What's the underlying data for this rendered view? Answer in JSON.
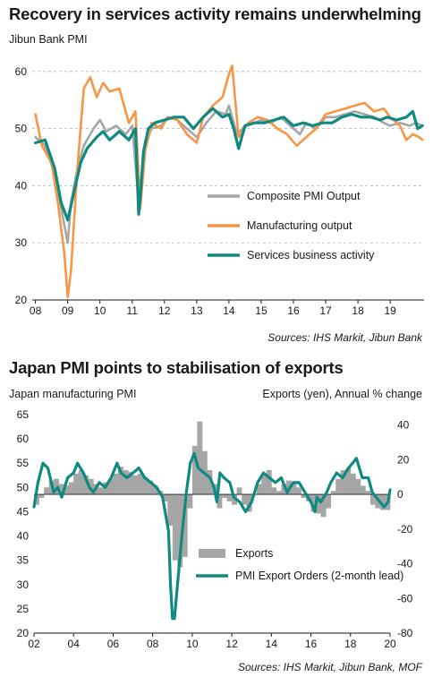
{
  "chart1": {
    "title": "Recovery in services activity remains underwhelming",
    "ylabel": "Jibun Bank PMI",
    "source": "Sources: IHS Markit, Jibun Bank",
    "colors": {
      "composite": "#a6a6a6",
      "manufacturing": "#f79646",
      "services": "#0f8a80"
    },
    "chart_data": {
      "type": "line",
      "ylim": [
        20,
        62
      ],
      "yticks": [
        "20",
        "30",
        "40",
        "50",
        "60"
      ],
      "xlabels": [
        "08",
        "09",
        "10",
        "11",
        "12",
        "13",
        "14",
        "15",
        "16",
        "17",
        "18",
        "19"
      ],
      "legend": "inside, lower-right",
      "series": [
        {
          "name": "Composite PMI Output",
          "x": [
            2008.0,
            2008.3,
            2008.6,
            2008.8,
            2009.0,
            2009.1,
            2009.3,
            2009.5,
            2009.8,
            2010.0,
            2010.2,
            2010.5,
            2010.8,
            2011.0,
            2011.2,
            2011.25,
            2011.4,
            2011.6,
            2011.9,
            2012.1,
            2012.4,
            2012.7,
            2013.0,
            2013.3,
            2013.6,
            2013.9,
            2014.0,
            2014.25,
            2014.5,
            2014.8,
            2015.0,
            2015.3,
            2015.6,
            2015.9,
            2016.2,
            2016.4,
            2016.7,
            2017.0,
            2017.3,
            2017.6,
            2017.9,
            2018.2,
            2018.5,
            2018.8,
            2019.0,
            2019.3,
            2019.6,
            2019.8,
            2020.0
          ],
          "values": [
            48.5,
            47,
            42,
            36,
            30,
            37,
            43,
            47,
            50,
            51.5,
            49.5,
            50.5,
            49,
            50.5,
            37,
            40,
            47,
            50,
            50.5,
            52,
            51.5,
            50,
            48.5,
            51,
            53,
            52.5,
            54,
            49,
            50.5,
            51,
            51.5,
            51,
            52,
            50.5,
            49,
            51,
            50,
            52,
            52,
            52.5,
            53,
            52.5,
            52,
            51,
            50.5,
            51,
            50.5,
            51,
            50.5
          ]
        },
        {
          "name": "Manufacturing output",
          "x": [
            2008.0,
            2008.2,
            2008.5,
            2008.7,
            2008.9,
            2009.0,
            2009.1,
            2009.3,
            2009.5,
            2009.7,
            2009.9,
            2010.1,
            2010.3,
            2010.6,
            2010.9,
            2011.1,
            2011.25,
            2011.4,
            2011.6,
            2011.9,
            2012.1,
            2012.4,
            2012.7,
            2013.0,
            2013.2,
            2013.5,
            2013.8,
            2014.0,
            2014.1,
            2014.3,
            2014.6,
            2014.9,
            2015.2,
            2015.5,
            2015.8,
            2016.1,
            2016.4,
            2016.7,
            2017.0,
            2017.3,
            2017.6,
            2017.9,
            2018.2,
            2018.5,
            2018.8,
            2019.0,
            2019.3,
            2019.5,
            2019.7,
            2019.9,
            2020.0
          ],
          "values": [
            52.5,
            47,
            44,
            37,
            28,
            20.5,
            25,
            43,
            57,
            59,
            55.5,
            58,
            56.5,
            57,
            51,
            53,
            36,
            46,
            51,
            50,
            52,
            51.5,
            49,
            47.5,
            52,
            54,
            55.5,
            59.5,
            61,
            48.5,
            51,
            52,
            51.5,
            50,
            49,
            47,
            48.5,
            50,
            52.5,
            53,
            53.5,
            54,
            54.5,
            53,
            53.5,
            52,
            50.5,
            48,
            49,
            48.5,
            48
          ]
        },
        {
          "name": "Services business activity",
          "x": [
            2008.0,
            2008.3,
            2008.6,
            2008.8,
            2009.0,
            2009.2,
            2009.4,
            2009.6,
            2009.9,
            2010.1,
            2010.3,
            2010.6,
            2010.9,
            2011.1,
            2011.2,
            2011.25,
            2011.35,
            2011.5,
            2011.7,
            2012.0,
            2012.3,
            2012.6,
            2012.9,
            2013.2,
            2013.5,
            2013.8,
            2014.0,
            2014.15,
            2014.3,
            2014.5,
            2014.8,
            2015.1,
            2015.4,
            2015.7,
            2016.0,
            2016.3,
            2016.6,
            2016.9,
            2017.2,
            2017.5,
            2017.8,
            2018.1,
            2018.4,
            2018.7,
            2018.9,
            2019.2,
            2019.5,
            2019.7,
            2019.85,
            2020.0
          ],
          "values": [
            47.5,
            48,
            43,
            37,
            34,
            39,
            44,
            46.5,
            48.5,
            49.5,
            48,
            49.5,
            48,
            50,
            35,
            38,
            46,
            50,
            51,
            51.5,
            52,
            52,
            50,
            52,
            53.5,
            52,
            52.5,
            50,
            46.5,
            50.5,
            51,
            51,
            51.5,
            52,
            50.5,
            51,
            50.5,
            51,
            51,
            52,
            52.5,
            52,
            52,
            51.5,
            52,
            51.5,
            52,
            53,
            50,
            50.5
          ]
        }
      ]
    }
  },
  "chart2": {
    "title": "Japan PMI points to stabilisation of exports",
    "ylabel_left": "Japan manufacturing PMI",
    "ylabel_right": "Exports (yen), Annual % change",
    "source": "Sources: IHS Markit, Jibun Bank, MOF",
    "colors": {
      "bars": "#a6a6a6",
      "line": "#0f8a80"
    },
    "chart_data": {
      "type": "bar+line",
      "ylim_left": [
        20,
        65
      ],
      "ylim_right": [
        -80,
        46
      ],
      "yticks_left": [
        "20",
        "25",
        "30",
        "35",
        "40",
        "45",
        "50",
        "55",
        "60",
        "65"
      ],
      "yticks_right": [
        "-80",
        "-60",
        "-40",
        "-20",
        "0",
        "20",
        "40"
      ],
      "xlabels": [
        "02",
        "04",
        "06",
        "08",
        "10",
        "12",
        "14",
        "16",
        "18",
        "20"
      ],
      "legend": "inside, lower-right",
      "series": [
        {
          "name": "Exports",
          "type": "bar",
          "x": [
            2002.0,
            2002.25,
            2002.5,
            2002.75,
            2003.0,
            2003.25,
            2003.5,
            2003.75,
            2004.0,
            2004.25,
            2004.5,
            2004.75,
            2005.0,
            2005.25,
            2005.5,
            2005.75,
            2006.0,
            2006.25,
            2006.5,
            2006.75,
            2007.0,
            2007.25,
            2007.5,
            2007.75,
            2008.0,
            2008.25,
            2008.5,
            2008.75,
            2009.0,
            2009.25,
            2009.5,
            2009.75,
            2010.0,
            2010.25,
            2010.5,
            2010.75,
            2011.0,
            2011.25,
            2011.5,
            2011.75,
            2012.0,
            2012.25,
            2012.5,
            2012.75,
            2013.0,
            2013.25,
            2013.5,
            2013.75,
            2014.0,
            2014.25,
            2014.5,
            2014.75,
            2015.0,
            2015.25,
            2015.5,
            2015.75,
            2016.0,
            2016.25,
            2016.5,
            2016.75,
            2017.0,
            2017.25,
            2017.5,
            2017.75,
            2018.0,
            2018.25,
            2018.5,
            2018.75,
            2019.0,
            2019.25,
            2019.5,
            2019.75
          ],
          "values": [
            -6,
            -2,
            4,
            8,
            9,
            6,
            5,
            7,
            12,
            14,
            11,
            9,
            6,
            4,
            7,
            9,
            12,
            16,
            14,
            13,
            11,
            12,
            10,
            8,
            5,
            2,
            -4,
            -18,
            -38,
            -42,
            -36,
            -8,
            28,
            42,
            25,
            14,
            6,
            -8,
            -2,
            -4,
            -6,
            4,
            -6,
            -10,
            0,
            6,
            12,
            14,
            4,
            2,
            6,
            8,
            7,
            4,
            -2,
            -4,
            -10,
            -11,
            -13,
            -8,
            2,
            9,
            14,
            15,
            12,
            9,
            5,
            2,
            -6,
            -8,
            -9,
            -9
          ]
        },
        {
          "name": "PMI Export Orders (2-month lead)",
          "type": "line",
          "x": [
            2002.0,
            2002.2,
            2002.45,
            2002.7,
            2003.0,
            2003.2,
            2003.4,
            2003.7,
            2004.0,
            2004.2,
            2004.5,
            2004.8,
            2005.0,
            2005.3,
            2005.6,
            2005.9,
            2006.2,
            2006.4,
            2006.7,
            2007.0,
            2007.3,
            2007.6,
            2007.9,
            2008.2,
            2008.5,
            2008.8,
            2008.9,
            2009.0,
            2009.1,
            2009.3,
            2009.5,
            2009.7,
            2009.9,
            2010.1,
            2010.3,
            2010.6,
            2010.9,
            2011.1,
            2011.25,
            2011.4,
            2011.6,
            2011.9,
            2012.1,
            2012.4,
            2012.7,
            2013.0,
            2013.3,
            2013.6,
            2013.9,
            2014.2,
            2014.5,
            2014.8,
            2015.1,
            2015.4,
            2015.7,
            2016.0,
            2016.2,
            2016.3,
            2016.5,
            2016.8,
            2017.0,
            2017.3,
            2017.6,
            2017.9,
            2018.1,
            2018.3,
            2018.6,
            2018.9,
            2019.1,
            2019.3,
            2019.5,
            2019.7,
            2019.9,
            2020.0
          ],
          "values": [
            46,
            51,
            55,
            54,
            49,
            50,
            48,
            52,
            53,
            55,
            53,
            50,
            49,
            51,
            50,
            52,
            55,
            53,
            52,
            53,
            54,
            52,
            51,
            50,
            48,
            41,
            30,
            23,
            23,
            32,
            41,
            49,
            55,
            57,
            54,
            53,
            52,
            50,
            47,
            53,
            52,
            51,
            48,
            47,
            45,
            47,
            51,
            53,
            52,
            51,
            52,
            49,
            51,
            51,
            49,
            47,
            45,
            48,
            47,
            49,
            51,
            53,
            52,
            54,
            55,
            56,
            52,
            52,
            49,
            48,
            47,
            46,
            47,
            49.5
          ]
        }
      ]
    }
  }
}
